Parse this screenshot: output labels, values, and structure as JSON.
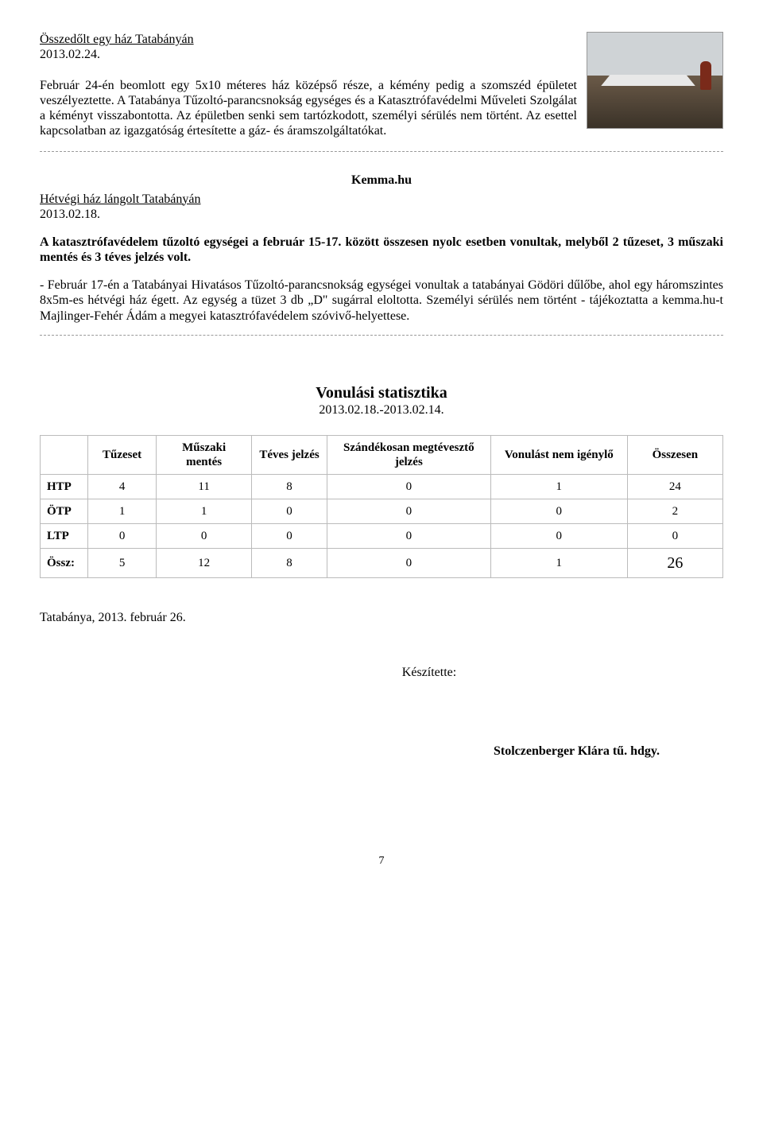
{
  "article1": {
    "title": "Összedőlt egy ház Tatabányán",
    "date": "2013.02.24.",
    "body": "Február 24-én beomlott egy 5x10 méteres ház középső része, a kémény pedig a szomszéd épületet veszélyeztette. A Tatabánya Tűzoltó-parancsnokság egységes és a Katasztrófavédelmi Műveleti Szolgálat a kéményt visszabontotta. Az épületben senki sem tartózkodott, személyi sérülés nem történt. Az esettel kapcsolatban az igazgatóság értesítette a gáz- és áramszolgáltatókat."
  },
  "source_label": "Kemma.hu",
  "article2": {
    "title": "Hétvégi ház lángolt Tatabányán",
    "date": "2013.02.18.",
    "lead": "A katasztrófavédelem tűzoltó egységei a február 15-17. között összesen nyolc esetben vonultak, melyből 2 tűzeset, 3 műszaki mentés és 3 téves jelzés volt.",
    "body": "- Február 17-én a Tatabányai Hivatásos Tűzoltó-parancsnokság egységei vonultak a tatabányai Gödöri dűlőbe, ahol egy háromszintes 8x5m-es hétvégi ház égett. Az egység a tüzet 3 db „D\" sugárral eloltotta. Személyi sérülés nem történt - tájékoztatta a kemma.hu-t Majlinger-Fehér Ádám a megyei katasztrófavédelem szóvivő-helyettese."
  },
  "stats": {
    "title": "Vonulási statisztika",
    "date_range": "2013.02.18.-2013.02.14.",
    "columns": [
      "",
      "Tűzeset",
      "Műszaki mentés",
      "Téves jelzés",
      "Szándékosan megtévesztő jelzés",
      "Vonulást nem igénylő",
      "Összesen"
    ],
    "rows": [
      {
        "label": "HTP",
        "cells": [
          "4",
          "11",
          "8",
          "0",
          "1",
          "24"
        ]
      },
      {
        "label": "ÖTP",
        "cells": [
          "1",
          "1",
          "0",
          "0",
          "0",
          "2"
        ]
      },
      {
        "label": "LTP",
        "cells": [
          "0",
          "0",
          "0",
          "0",
          "0",
          "0"
        ]
      },
      {
        "label": "Össz:",
        "cells": [
          "5",
          "12",
          "8",
          "0",
          "1",
          "26"
        ]
      }
    ],
    "col_widths": [
      "7%",
      "10%",
      "14%",
      "11%",
      "24%",
      "20%",
      "14%"
    ]
  },
  "footer": {
    "place_date": "Tatabánya, 2013. február 26.",
    "keszitette": "Készítette:",
    "author": "Stolczenberger Klára tű. hdgy."
  },
  "page_number": "7",
  "colors": {
    "text": "#000000",
    "border": "#bbbbbb",
    "dash": "#999999",
    "background": "#ffffff"
  },
  "typography": {
    "body_fontsize": 16,
    "stats_title_fontsize": 20,
    "table_fontsize": 15,
    "font_family": "Times New Roman"
  }
}
